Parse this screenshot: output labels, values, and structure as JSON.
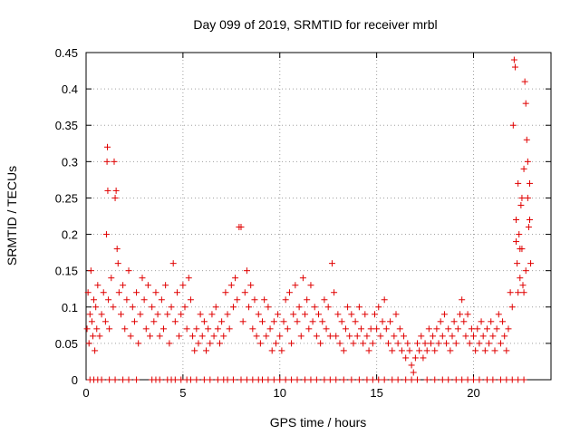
{
  "chart_data": {
    "type": "scatter",
    "title": "Day 099 of 2019, SRMTID for receiver mrbl",
    "xlabel": "GPS time / hours",
    "ylabel": "SRMTID / TECUs",
    "xlim": [
      0,
      24
    ],
    "ylim": [
      0,
      0.45
    ],
    "xticks": [
      0,
      5,
      10,
      15,
      20
    ],
    "xtick_labels": [
      "0",
      "5",
      "10",
      "15",
      "20"
    ],
    "yticks": [
      0,
      0.05,
      0.1,
      0.15,
      0.2,
      0.25,
      0.3,
      0.35,
      0.4,
      0.45
    ],
    "ytick_labels": [
      "0",
      "0.05",
      "0.1",
      "0.15",
      "0.2",
      "0.25",
      "0.3",
      "0.35",
      "0.4",
      "0.45"
    ],
    "grid": true,
    "marker": "+",
    "color": "#e00000",
    "series": [
      {
        "name": "SRMTID",
        "points": [
          [
            0.05,
            0.07
          ],
          [
            0.1,
            0.12
          ],
          [
            0.15,
            0.05
          ],
          [
            0.2,
            0.09
          ],
          [
            0.25,
            0.15
          ],
          [
            0.3,
            0.08
          ],
          [
            0.35,
            0.06
          ],
          [
            0.4,
            0.11
          ],
          [
            0.45,
            0.04
          ],
          [
            0.5,
            0.1
          ],
          [
            0.55,
            0.07
          ],
          [
            0.6,
            0.13
          ],
          [
            0.7,
            0.06
          ],
          [
            0.8,
            0.09
          ],
          [
            0.9,
            0.12
          ],
          [
            1.0,
            0.08
          ],
          [
            1.05,
            0.2
          ],
          [
            1.08,
            0.3
          ],
          [
            1.1,
            0.32
          ],
          [
            1.12,
            0.26
          ],
          [
            1.15,
            0.11
          ],
          [
            1.2,
            0.07
          ],
          [
            1.3,
            0.14
          ],
          [
            1.4,
            0.1
          ],
          [
            1.45,
            0.3
          ],
          [
            1.5,
            0.25
          ],
          [
            1.55,
            0.26
          ],
          [
            1.6,
            0.18
          ],
          [
            1.65,
            0.16
          ],
          [
            1.7,
            0.12
          ],
          [
            1.8,
            0.09
          ],
          [
            1.9,
            0.13
          ],
          [
            2.0,
            0.07
          ],
          [
            2.1,
            0.11
          ],
          [
            2.2,
            0.15
          ],
          [
            2.3,
            0.06
          ],
          [
            2.4,
            0.1
          ],
          [
            2.5,
            0.08
          ],
          [
            2.6,
            0.12
          ],
          [
            2.7,
            0.05
          ],
          [
            2.8,
            0.09
          ],
          [
            2.9,
            0.14
          ],
          [
            3.0,
            0.11
          ],
          [
            3.1,
            0.07
          ],
          [
            3.2,
            0.13
          ],
          [
            3.3,
            0.06
          ],
          [
            3.4,
            0.1
          ],
          [
            3.5,
            0.08
          ],
          [
            3.6,
            0.12
          ],
          [
            3.7,
            0.09
          ],
          [
            3.8,
            0.06
          ],
          [
            3.9,
            0.11
          ],
          [
            4.0,
            0.07
          ],
          [
            4.1,
            0.13
          ],
          [
            4.2,
            0.09
          ],
          [
            4.3,
            0.05
          ],
          [
            4.4,
            0.1
          ],
          [
            4.5,
            0.16
          ],
          [
            4.6,
            0.08
          ],
          [
            4.7,
            0.12
          ],
          [
            4.8,
            0.06
          ],
          [
            4.9,
            0.09
          ],
          [
            5.0,
            0.13
          ],
          [
            5.1,
            0.1
          ],
          [
            5.2,
            0.07
          ],
          [
            5.3,
            0.14
          ],
          [
            5.4,
            0.11
          ],
          [
            5.5,
            0.06
          ],
          [
            5.6,
            0.04
          ],
          [
            5.7,
            0.07
          ],
          [
            5.8,
            0.05
          ],
          [
            5.9,
            0.09
          ],
          [
            6.0,
            0.06
          ],
          [
            6.1,
            0.08
          ],
          [
            6.2,
            0.04
          ],
          [
            6.3,
            0.07
          ],
          [
            6.4,
            0.05
          ],
          [
            6.5,
            0.09
          ],
          [
            6.6,
            0.06
          ],
          [
            6.7,
            0.1
          ],
          [
            6.8,
            0.07
          ],
          [
            6.9,
            0.05
          ],
          [
            7.0,
            0.08
          ],
          [
            7.1,
            0.06
          ],
          [
            7.2,
            0.12
          ],
          [
            7.3,
            0.09
          ],
          [
            7.4,
            0.07
          ],
          [
            7.5,
            0.13
          ],
          [
            7.6,
            0.1
          ],
          [
            7.7,
            0.14
          ],
          [
            7.8,
            0.11
          ],
          [
            7.9,
            0.21
          ],
          [
            8.0,
            0.21
          ],
          [
            8.1,
            0.08
          ],
          [
            8.2,
            0.12
          ],
          [
            8.3,
            0.15
          ],
          [
            8.4,
            0.1
          ],
          [
            8.5,
            0.13
          ],
          [
            8.6,
            0.07
          ],
          [
            8.7,
            0.11
          ],
          [
            8.8,
            0.06
          ],
          [
            8.9,
            0.09
          ],
          [
            9.0,
            0.05
          ],
          [
            9.1,
            0.08
          ],
          [
            9.2,
            0.11
          ],
          [
            9.3,
            0.06
          ],
          [
            9.4,
            0.1
          ],
          [
            9.5,
            0.07
          ],
          [
            9.6,
            0.04
          ],
          [
            9.7,
            0.08
          ],
          [
            9.8,
            0.05
          ],
          [
            9.9,
            0.09
          ],
          [
            10.0,
            0.06
          ],
          [
            10.1,
            0.04
          ],
          [
            10.2,
            0.08
          ],
          [
            10.3,
            0.11
          ],
          [
            10.4,
            0.07
          ],
          [
            10.5,
            0.12
          ],
          [
            10.6,
            0.05
          ],
          [
            10.7,
            0.09
          ],
          [
            10.8,
            0.13
          ],
          [
            10.9,
            0.08
          ],
          [
            11.0,
            0.1
          ],
          [
            11.1,
            0.06
          ],
          [
            11.2,
            0.14
          ],
          [
            11.3,
            0.09
          ],
          [
            11.4,
            0.11
          ],
          [
            11.5,
            0.07
          ],
          [
            11.6,
            0.13
          ],
          [
            11.7,
            0.08
          ],
          [
            11.8,
            0.1
          ],
          [
            11.9,
            0.06
          ],
          [
            12.0,
            0.09
          ],
          [
            12.1,
            0.05
          ],
          [
            12.2,
            0.08
          ],
          [
            12.3,
            0.11
          ],
          [
            12.4,
            0.07
          ],
          [
            12.5,
            0.1
          ],
          [
            12.6,
            0.06
          ],
          [
            12.7,
            0.16
          ],
          [
            12.8,
            0.12
          ],
          [
            12.9,
            0.06
          ],
          [
            13.0,
            0.09
          ],
          [
            13.1,
            0.05
          ],
          [
            13.2,
            0.08
          ],
          [
            13.3,
            0.04
          ],
          [
            13.4,
            0.07
          ],
          [
            13.5,
            0.1
          ],
          [
            13.6,
            0.06
          ],
          [
            13.7,
            0.09
          ],
          [
            13.8,
            0.05
          ],
          [
            13.9,
            0.08
          ],
          [
            14.0,
            0.06
          ],
          [
            14.1,
            0.1
          ],
          [
            14.2,
            0.07
          ],
          [
            14.3,
            0.05
          ],
          [
            14.4,
            0.09
          ],
          [
            14.5,
            0.06
          ],
          [
            14.6,
            0.04
          ],
          [
            14.7,
            0.07
          ],
          [
            14.8,
            0.05
          ],
          [
            14.9,
            0.09
          ],
          [
            15.0,
            0.07
          ],
          [
            15.1,
            0.1
          ],
          [
            15.2,
            0.06
          ],
          [
            15.3,
            0.08
          ],
          [
            15.4,
            0.11
          ],
          [
            15.5,
            0.07
          ],
          [
            15.6,
            0.05
          ],
          [
            15.7,
            0.08
          ],
          [
            15.8,
            0.04
          ],
          [
            15.9,
            0.06
          ],
          [
            16.0,
            0.09
          ],
          [
            16.1,
            0.05
          ],
          [
            16.2,
            0.07
          ],
          [
            16.3,
            0.04
          ],
          [
            16.4,
            0.06
          ],
          [
            16.5,
            0.03
          ],
          [
            16.6,
            0.05
          ],
          [
            16.7,
            0.04
          ],
          [
            16.8,
            0.02
          ],
          [
            16.9,
            0.01
          ],
          [
            17.0,
            0.03
          ],
          [
            17.1,
            0.05
          ],
          [
            17.2,
            0.04
          ],
          [
            17.3,
            0.06
          ],
          [
            17.4,
            0.03
          ],
          [
            17.5,
            0.05
          ],
          [
            17.6,
            0.04
          ],
          [
            17.7,
            0.07
          ],
          [
            17.8,
            0.05
          ],
          [
            17.9,
            0.06
          ],
          [
            18.0,
            0.04
          ],
          [
            18.1,
            0.07
          ],
          [
            18.2,
            0.05
          ],
          [
            18.3,
            0.08
          ],
          [
            18.4,
            0.06
          ],
          [
            18.5,
            0.09
          ],
          [
            18.6,
            0.05
          ],
          [
            18.7,
            0.07
          ],
          [
            18.8,
            0.04
          ],
          [
            18.9,
            0.06
          ],
          [
            19.0,
            0.08
          ],
          [
            19.1,
            0.05
          ],
          [
            19.2,
            0.07
          ],
          [
            19.3,
            0.09
          ],
          [
            19.4,
            0.11
          ],
          [
            19.5,
            0.08
          ],
          [
            19.6,
            0.06
          ],
          [
            19.7,
            0.09
          ],
          [
            19.8,
            0.05
          ],
          [
            19.9,
            0.07
          ],
          [
            20.0,
            0.06
          ],
          [
            20.1,
            0.04
          ],
          [
            20.2,
            0.07
          ],
          [
            20.3,
            0.05
          ],
          [
            20.4,
            0.08
          ],
          [
            20.5,
            0.06
          ],
          [
            20.6,
            0.04
          ],
          [
            20.7,
            0.07
          ],
          [
            20.8,
            0.05
          ],
          [
            20.9,
            0.08
          ],
          [
            21.0,
            0.06
          ],
          [
            21.1,
            0.04
          ],
          [
            21.2,
            0.07
          ],
          [
            21.3,
            0.09
          ],
          [
            21.4,
            0.05
          ],
          [
            21.5,
            0.08
          ],
          [
            21.6,
            0.06
          ],
          [
            21.7,
            0.04
          ],
          [
            21.8,
            0.07
          ],
          [
            21.9,
            0.12
          ],
          [
            22.0,
            0.1
          ],
          [
            22.05,
            0.35
          ],
          [
            22.1,
            0.44
          ],
          [
            22.15,
            0.43
          ],
          [
            22.2,
            0.22
          ],
          [
            22.25,
            0.16
          ],
          [
            22.3,
            0.27
          ],
          [
            22.35,
            0.2
          ],
          [
            22.4,
            0.14
          ],
          [
            22.45,
            0.24
          ],
          [
            22.5,
            0.18
          ],
          [
            22.55,
            0.13
          ],
          [
            22.6,
            0.29
          ],
          [
            22.65,
            0.41
          ],
          [
            22.7,
            0.38
          ],
          [
            22.75,
            0.33
          ],
          [
            22.8,
            0.25
          ],
          [
            22.85,
            0.21
          ],
          [
            22.9,
            0.27
          ],
          [
            22.95,
            0.16
          ],
          [
            22.6,
            0.12
          ],
          [
            22.7,
            0.15
          ],
          [
            22.8,
            0.3
          ],
          [
            22.9,
            0.22
          ],
          [
            22.3,
            0.12
          ],
          [
            22.4,
            0.18
          ],
          [
            22.5,
            0.25
          ],
          [
            22.2,
            0.19
          ]
        ]
      }
    ],
    "zero_points_x": [
      0.2,
      0.4,
      0.6,
      0.8,
      1.2,
      1.5,
      1.9,
      2.2,
      2.6,
      3.4,
      3.6,
      3.8,
      4.2,
      4.4,
      4.6,
      4.9,
      5.2,
      5.4,
      5.7,
      6.1,
      6.4,
      6.8,
      7.1,
      7.3,
      7.6,
      8.0,
      8.3,
      8.6,
      8.9,
      9.1,
      9.4,
      9.7,
      10.0,
      10.3,
      10.6,
      10.9,
      11.3,
      11.6,
      11.9,
      12.3,
      12.6,
      12.9,
      13.3,
      13.7,
      14.1,
      14.5,
      14.8,
      15.1,
      15.4,
      15.8,
      16.1,
      16.5,
      16.8,
      17.1,
      17.6,
      18.0,
      18.4,
      18.7,
      19.1,
      19.4,
      19.7,
      20.0,
      20.3,
      20.7,
      21.0,
      21.4,
      21.7,
      22.0,
      22.3,
      22.6
    ]
  }
}
